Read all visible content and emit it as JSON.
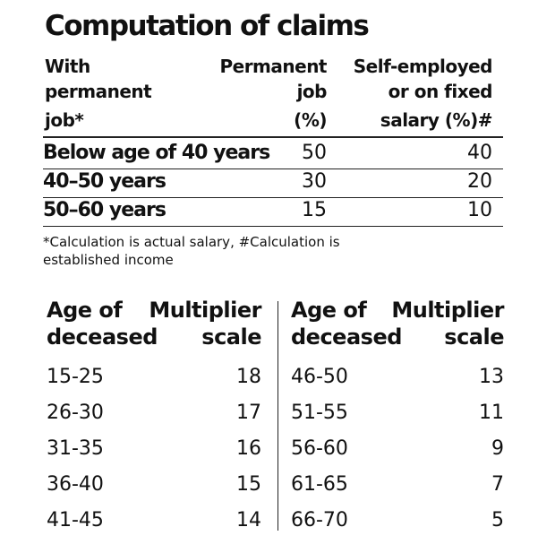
{
  "title": "Computation of claims",
  "table1": {
    "headers": [
      [
        "With",
        "permanent",
        "job*"
      ],
      [
        "Permanent",
        "job",
        "(%)"
      ],
      [
        "Self-employed",
        "or on fixed",
        "salary (%)#"
      ]
    ],
    "rows": [
      [
        "Below age of 40 years",
        50,
        40
      ],
      [
        "40–50 years",
        30,
        20
      ],
      [
        "50–60 years",
        15,
        10
      ]
    ]
  },
  "note": [
    "*Calculation is actual salary, #Calculation is",
    "established income"
  ],
  "table2": {
    "left": {
      "headers": [
        [
          "Age of",
          "deceased"
        ],
        [
          "Multiplier",
          "scale"
        ]
      ],
      "rows": [
        [
          "15-25",
          18
        ],
        [
          "26-30",
          17
        ],
        [
          "31-35",
          16
        ],
        [
          "36-40",
          15
        ],
        [
          "41-45",
          14
        ]
      ]
    },
    "right": {
      "headers": [
        [
          "Age of",
          "deceased"
        ],
        [
          "Multiplier",
          "scale"
        ]
      ],
      "rows": [
        [
          "46-50",
          13
        ],
        [
          "51-55",
          11
        ],
        [
          "56-60",
          9
        ],
        [
          "61-65",
          7
        ],
        [
          "66-70",
          5
        ]
      ]
    }
  }
}
